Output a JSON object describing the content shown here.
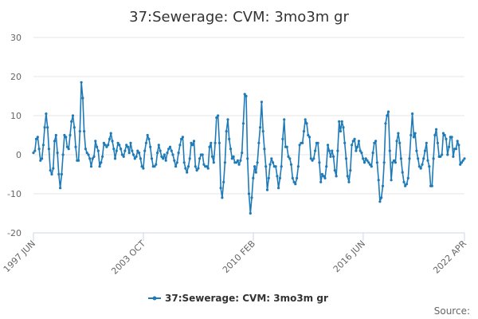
{
  "chart_data": {
    "type": "line",
    "title": "37:Sewerage: CVM: 3mo3m gr",
    "xlabel": "",
    "ylabel": "",
    "ylim": [
      -20,
      30
    ],
    "y_ticks": [
      "-20",
      "-10",
      "0",
      "10",
      "20",
      "30"
    ],
    "x_tick_labels": [
      "1997 JUN",
      "2003 OCT",
      "2010 FEB",
      "2016 JUN",
      "2022 APR"
    ],
    "grid": true,
    "legend_position": "bottom-center",
    "colors": {
      "series": "#1f7ab8"
    },
    "series": [
      {
        "name": "37:Sewerage: CVM: 3mo3m gr",
        "start": "1997-06",
        "end": "2022-04",
        "values": [
          0.5,
          1,
          4,
          4.5,
          1.5,
          -1.5,
          -1,
          2.5,
          7,
          10.5,
          7,
          1.5,
          -4,
          -5,
          -3.5,
          3.5,
          5,
          0.5,
          -5,
          -8.5,
          -5,
          0,
          5,
          4.5,
          2,
          1.5,
          5,
          8.5,
          10,
          7,
          2,
          -1.5,
          -1.5,
          6,
          18.5,
          14.5,
          6,
          1.5,
          0.5,
          0,
          -1,
          -3,
          -1,
          -0.5,
          3.5,
          2,
          1,
          -3,
          -2,
          -0.5,
          3,
          2.5,
          2,
          2.5,
          4,
          5.5,
          3.5,
          1.5,
          -1,
          1,
          3,
          2.5,
          1.5,
          0,
          -0.5,
          1,
          2.5,
          2,
          0.5,
          3,
          1,
          0,
          -1,
          -0.5,
          1,
          0.5,
          -1,
          -3,
          -3.5,
          1,
          3,
          5,
          4,
          2,
          -1,
          -3,
          -3,
          -2.5,
          0.5,
          2.5,
          1,
          -0.5,
          -1,
          0,
          -1.5,
          0.5,
          1.5,
          2,
          1,
          0,
          -1.5,
          -3,
          -2,
          0.5,
          2.5,
          4,
          4.5,
          -2,
          -3.5,
          -4.5,
          -3,
          -1,
          3,
          2.5,
          3.5,
          -3,
          -4,
          -3.5,
          -1,
          0,
          0,
          -2.5,
          -3,
          -3,
          -3.5,
          2,
          3,
          -0.5,
          -2,
          3,
          9.5,
          10,
          3,
          -8.5,
          -11,
          -7,
          -2,
          6,
          9,
          4,
          1.5,
          -1,
          -0.5,
          -2,
          -2,
          -1.5,
          -2.5,
          -1.5,
          0.5,
          8,
          15.5,
          15,
          -1,
          -10,
          -15,
          -11,
          -6,
          -3,
          -4.5,
          -2,
          3,
          7,
          13.5,
          6,
          1.5,
          -3,
          -9,
          -6,
          -2.5,
          -1,
          -2,
          -3,
          -3,
          -5.5,
          -8.5,
          -6,
          -3,
          4,
          9,
          2,
          2,
          -0.5,
          -1,
          -2.5,
          -6,
          -7,
          -7.5,
          -6,
          -3,
          2.5,
          3,
          3,
          6,
          9,
          8,
          5,
          4.5,
          -1,
          -1.5,
          -1,
          1,
          3,
          3,
          -2,
          -7,
          -5,
          -5.5,
          -6,
          -3,
          2.5,
          1,
          -0.5,
          1,
          -0.5,
          -4,
          -5.5,
          1,
          8.5,
          6,
          8.5,
          7,
          3,
          -1,
          -5.5,
          -7,
          -4,
          2.5,
          3.5,
          4,
          1,
          2,
          3.5,
          1,
          0.5,
          -1,
          -2,
          -1,
          -1.5,
          -2,
          -2.5,
          -3,
          0.5,
          3,
          3.5,
          -2,
          -6.5,
          -12,
          -11,
          -8,
          -2,
          8,
          10,
          11,
          1,
          -6.5,
          -2,
          -1.5,
          -2,
          3.5,
          5.5,
          3,
          -1,
          -4.5,
          -7,
          -8,
          -7.5,
          -6,
          -1,
          5,
          10.5,
          4.5,
          5.5,
          1,
          -1,
          -3,
          -3.5,
          -2.5,
          -1,
          1,
          3,
          -1.5,
          -3,
          -8,
          -8,
          -1,
          5,
          6.5,
          3,
          -0.5,
          -0.5,
          0,
          5.5,
          5,
          4,
          0,
          2,
          4.5,
          4.5,
          -0.5,
          1.5,
          1.5,
          3.5,
          2.5,
          -2.5,
          -2,
          -1.5,
          -1
        ]
      }
    ]
  },
  "footer": {
    "source_label": "Source:"
  }
}
